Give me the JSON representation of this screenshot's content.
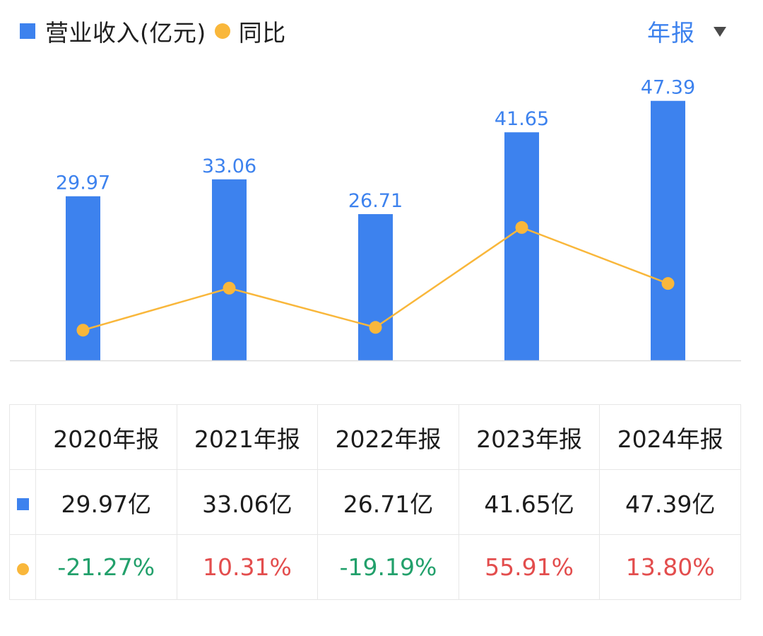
{
  "legend": {
    "revenue_label": "营业收入(亿元)",
    "growth_label": "同比"
  },
  "period_selector": {
    "label": "年报"
  },
  "colors": {
    "bar": "#3d82ee",
    "bar_label": "#3d82ee",
    "line": "#f9b73b",
    "positive": "#e34d4d",
    "negative": "#22a06b"
  },
  "chart_data": {
    "type": "bar",
    "categories": [
      "2020年报",
      "2021年报",
      "2022年报",
      "2023年报",
      "2024年报"
    ],
    "series": [
      {
        "name": "营业收入(亿元)",
        "type": "bar",
        "values": [
          29.97,
          33.06,
          26.71,
          41.65,
          47.39
        ],
        "labels": [
          "29.97",
          "33.06",
          "26.71",
          "41.65",
          "47.39"
        ]
      },
      {
        "name": "同比",
        "type": "line",
        "values": [
          -21.27,
          10.31,
          -19.19,
          55.91,
          13.8
        ]
      }
    ],
    "grid": false
  },
  "table": {
    "headers": [
      "2020年报",
      "2021年报",
      "2022年报",
      "2023年报",
      "2024年报"
    ],
    "revenue": [
      "29.97亿",
      "33.06亿",
      "26.71亿",
      "41.65亿",
      "47.39亿"
    ],
    "growth": [
      {
        "text": "-21.27%",
        "sign": "negative"
      },
      {
        "text": "10.31%",
        "sign": "positive"
      },
      {
        "text": "-19.19%",
        "sign": "negative"
      },
      {
        "text": "55.91%",
        "sign": "positive"
      },
      {
        "text": "13.80%",
        "sign": "positive"
      }
    ]
  }
}
